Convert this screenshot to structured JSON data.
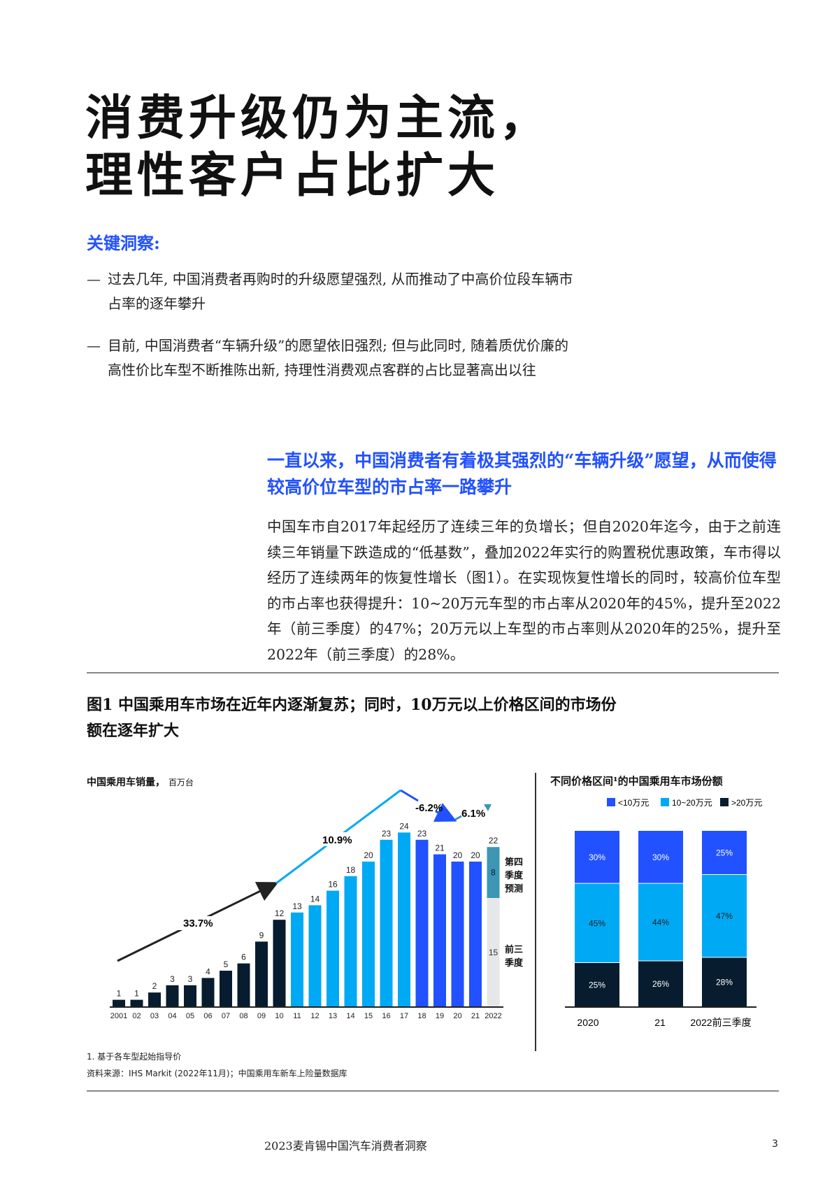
{
  "page": {
    "title_line1": "消费升级仍为主流，",
    "title_line2": "理性客户占比扩大",
    "key_insights": {
      "heading": "关键洞察:",
      "bullets": [
        {
          "dash": "—",
          "line1": "过去几年, 中国消费者再购时的升级愿望强烈, 从而推动了中高价位段车辆市",
          "line2": "占率的逐年攀升"
        },
        {
          "dash": "—",
          "line1": "目前, 中国消费者“车辆升级”的愿望依旧强烈; 但与此同时, 随着质优价廉的",
          "line2": "高性价比车型不断推陈出新, 持理性消费观点客群的占比显著高出以往"
        }
      ]
    },
    "highlight": "一直以来，中国消费者有着极其强烈的“车辆升级”愿望，从而使得较高价位车型的市占率一路攀升",
    "body_paragraph": "中国车市自2017年起经历了连续三年的负增长；但自2020年迄今，由于之前连续三年销量下跌造成的“低基数”，叠加2022年实行的购置税优惠政策，车市得以经历了连续两年的恢复性增长（图1）。在实现恢复性增长的同时，较高价位车型的市占率也获得提升：10~20万元车型的市占率从2020年的45%，提升至2022年（前三季度）的47%；20万元以上车型的市占率则从2020年的25%，提升至2022年（前三季度）的28%。",
    "figure_title_line1": "图1 中国乘用车市场在近年内逐渐复苏；同时，10万元以上价格区间的市场份",
    "figure_title_line2": "额在逐年扩大",
    "footnote": "1. 基于各车型起始指导价",
    "source": "资料来源：IHS Markit (2022年11月)；中国乘用车新车上险量数据库",
    "footer_text": "2023麦肯锡中国汽车消费者洞察",
    "page_number": "3"
  },
  "colors": {
    "navy": "#071c2e",
    "cyan": "#00a9f4",
    "blue": "#2251ff",
    "teal": "#3c96b4",
    "gray": "#e6e7e8",
    "black_arrow": "#222222"
  },
  "chart_data": [
    {
      "type": "bar",
      "title": "中国乘用车销量",
      "unit": "百万台",
      "categories": [
        "2001",
        "02",
        "03",
        "04",
        "05",
        "06",
        "07",
        "08",
        "09",
        "10",
        "11",
        "12",
        "13",
        "14",
        "15",
        "16",
        "17",
        "18",
        "19",
        "20",
        "21",
        "2022"
      ],
      "values": [
        1,
        1,
        2,
        3,
        3,
        4,
        5,
        6,
        9,
        12,
        13,
        14,
        16,
        18,
        20,
        23,
        24,
        23,
        21,
        20,
        20,
        22
      ],
      "series_2022_stack": [
        {
          "name": "前三季度",
          "value": 15
        },
        {
          "name": "第四季度预测",
          "value": 8
        }
      ],
      "annotations": [
        {
          "label": "33.7%",
          "span": "2001-2010",
          "direction": "up"
        },
        {
          "label": "10.9%",
          "span": "2010-2017",
          "direction": "up"
        },
        {
          "label": "-6.2%",
          "span": "2017-2020",
          "direction": "down"
        },
        {
          "label": "6.1%",
          "span": "2020-2022",
          "direction": "up"
        }
      ],
      "side_labels": [
        "第四季度预测",
        "前三季度"
      ]
    },
    {
      "type": "bar",
      "stacked": true,
      "title": "不同价格区间¹的中国乘用车市场份额",
      "categories": [
        "2020",
        "21",
        "2022前三季度"
      ],
      "legend": [
        "<10万元",
        "10~20万元",
        ">20万元"
      ],
      "series": [
        {
          "name": "<10万元",
          "values": [
            30,
            30,
            25
          ]
        },
        {
          "name": "10~20万元",
          "values": [
            45,
            44,
            47
          ]
        },
        {
          "name": ">20万元",
          "values": [
            25,
            26,
            28
          ]
        }
      ],
      "unit": "%"
    }
  ],
  "chart1": {
    "title_bold": "中国乘用车销量，",
    "title_unit": "百万台",
    "q4_label_1": "第四",
    "q4_label_2": "季度",
    "q4_label_3": "预测",
    "q13_label_1": "前三",
    "q13_label_2": "季度",
    "ann_337": "33.7%",
    "ann_109": "10.9%",
    "ann_m62": "-6.2%",
    "ann_61": "6.1%"
  },
  "chart2": {
    "title": "不同价格区间¹的中国乘用车市场份额",
    "legend": [
      {
        "label": "<10万元"
      },
      {
        "label": "10~20万元"
      },
      {
        "label": ">20万元"
      }
    ],
    "cats": [
      "2020",
      "21",
      "2022前三季度"
    ],
    "labels": {
      "c0": [
        "30%",
        "45%",
        "25%"
      ],
      "c1": [
        "30%",
        "44%",
        "26%"
      ],
      "c2": [
        "25%",
        "47%",
        "28%"
      ]
    }
  }
}
